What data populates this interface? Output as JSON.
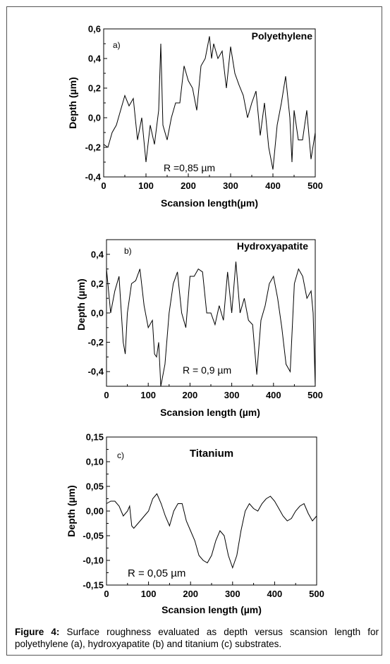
{
  "caption": {
    "label": "Figure 4:",
    "text": "Surface roughness evaluated as depth versus scansion length for polyethylene (a), hydroxyapatite (b) and titanium (c) substrates."
  },
  "chart_data": [
    {
      "type": "line",
      "panel_label": "a)",
      "title": "Polyethylene",
      "annotation": "R =0,85 µm",
      "xlabel": "Scansion length(µm)",
      "ylabel": "Depth (µm)",
      "xlim": [
        0,
        500
      ],
      "ylim": [
        -0.4,
        0.6
      ],
      "xticks": [
        "0",
        "100",
        "200",
        "300",
        "400",
        "500"
      ],
      "yticks": [
        "-0,4",
        "-0,2",
        "0,0",
        "0,2",
        "0,4",
        "0,6"
      ],
      "series": [
        {
          "x": [
            0,
            10,
            20,
            30,
            40,
            50,
            60,
            70,
            80,
            90,
            100,
            110,
            120,
            130,
            135,
            140,
            150,
            160,
            170,
            180,
            190,
            200,
            210,
            220,
            230,
            240,
            250,
            255,
            260,
            270,
            280,
            290,
            300,
            310,
            320,
            330,
            340,
            350,
            360,
            370,
            380,
            390,
            400,
            410,
            420,
            430,
            440,
            445,
            450,
            460,
            470,
            480,
            490,
            500
          ],
          "y": [
            -0.18,
            -0.2,
            -0.1,
            -0.05,
            0.05,
            0.15,
            0.08,
            0.13,
            -0.15,
            0.0,
            -0.3,
            -0.05,
            -0.18,
            0.05,
            0.5,
            -0.05,
            -0.15,
            0.0,
            0.1,
            0.1,
            0.35,
            0.25,
            0.2,
            0.05,
            0.35,
            0.4,
            0.55,
            0.4,
            0.5,
            0.4,
            0.45,
            0.2,
            0.48,
            0.3,
            0.22,
            0.15,
            0.0,
            0.1,
            0.18,
            -0.12,
            0.1,
            -0.2,
            -0.35,
            -0.05,
            0.1,
            0.28,
            0.0,
            -0.3,
            0.05,
            -0.15,
            -0.15,
            0.05,
            -0.28,
            -0.1
          ]
        }
      ]
    },
    {
      "type": "line",
      "panel_label": "b)",
      "title": "Hydroxyapatite",
      "annotation": "R = 0,9 µm",
      "xlabel": "Scansion length (µm)",
      "ylabel": "Depth (µm)",
      "xlim": [
        0,
        500
      ],
      "ylim": [
        -0.5,
        0.5
      ],
      "xticks": [
        "0",
        "100",
        "200",
        "300",
        "400",
        "500"
      ],
      "yticks": [
        "-0,4",
        "-0,2",
        "0,0",
        "0,2",
        "0,4"
      ],
      "series": [
        {
          "x": [
            -5,
            0,
            10,
            20,
            30,
            40,
            45,
            50,
            60,
            70,
            80,
            90,
            100,
            110,
            115,
            120,
            125,
            130,
            140,
            150,
            160,
            170,
            180,
            190,
            200,
            210,
            220,
            230,
            240,
            250,
            260,
            270,
            280,
            290,
            300,
            310,
            320,
            330,
            340,
            350,
            360,
            370,
            380,
            390,
            400,
            410,
            420,
            430,
            440,
            450,
            460,
            470,
            480,
            490,
            495,
            500
          ],
          "y": [
            0.55,
            0.3,
            0.0,
            0.15,
            0.25,
            -0.2,
            -0.28,
            0.0,
            0.2,
            0.22,
            0.3,
            0.05,
            -0.1,
            -0.05,
            -0.28,
            -0.3,
            -0.2,
            -0.5,
            -0.35,
            0.0,
            0.2,
            0.28,
            0.0,
            -0.1,
            0.25,
            0.25,
            0.3,
            0.28,
            0.0,
            0.0,
            -0.08,
            0.05,
            -0.05,
            0.28,
            0.0,
            0.35,
            0.0,
            0.1,
            -0.05,
            -0.08,
            -0.42,
            -0.05,
            0.05,
            0.2,
            0.25,
            0.1,
            -0.1,
            -0.35,
            -0.4,
            0.2,
            0.3,
            0.25,
            0.1,
            0.15,
            0.0,
            -0.5
          ]
        }
      ]
    },
    {
      "type": "line",
      "panel_label": "c)",
      "title": "Titanium",
      "annotation": "R = 0,05 µm",
      "xlabel": "Scansion length (µm)",
      "ylabel": "Depth (µm)",
      "xlim": [
        0,
        500
      ],
      "ylim": [
        -0.15,
        0.15
      ],
      "xticks": [
        "0",
        "100",
        "200",
        "300",
        "400",
        "500"
      ],
      "yticks": [
        "-0,15",
        "-0,10",
        "-0,05",
        "0,00",
        "0,05",
        "0,10",
        "0,15"
      ],
      "series": [
        {
          "x": [
            0,
            10,
            20,
            30,
            40,
            50,
            55,
            60,
            65,
            70,
            80,
            90,
            100,
            110,
            120,
            130,
            140,
            150,
            160,
            170,
            180,
            190,
            200,
            210,
            220,
            230,
            240,
            250,
            260,
            270,
            280,
            290,
            300,
            310,
            320,
            330,
            340,
            350,
            360,
            370,
            380,
            390,
            400,
            410,
            420,
            430,
            440,
            450,
            460,
            470,
            480,
            490,
            500
          ],
          "y": [
            0.015,
            0.02,
            0.02,
            0.01,
            -0.01,
            0.0,
            0.01,
            -0.03,
            -0.035,
            -0.03,
            -0.02,
            -0.01,
            0.0,
            0.025,
            0.035,
            0.015,
            -0.01,
            -0.03,
            0.0,
            0.015,
            0.015,
            -0.02,
            -0.04,
            -0.06,
            -0.09,
            -0.1,
            -0.105,
            -0.09,
            -0.06,
            -0.04,
            -0.05,
            -0.09,
            -0.115,
            -0.09,
            -0.04,
            0.0,
            0.015,
            0.005,
            0.0,
            0.015,
            0.025,
            0.03,
            0.02,
            0.005,
            -0.01,
            -0.02,
            -0.015,
            0.0,
            0.01,
            0.015,
            -0.005,
            -0.02,
            -0.01
          ]
        }
      ]
    }
  ]
}
